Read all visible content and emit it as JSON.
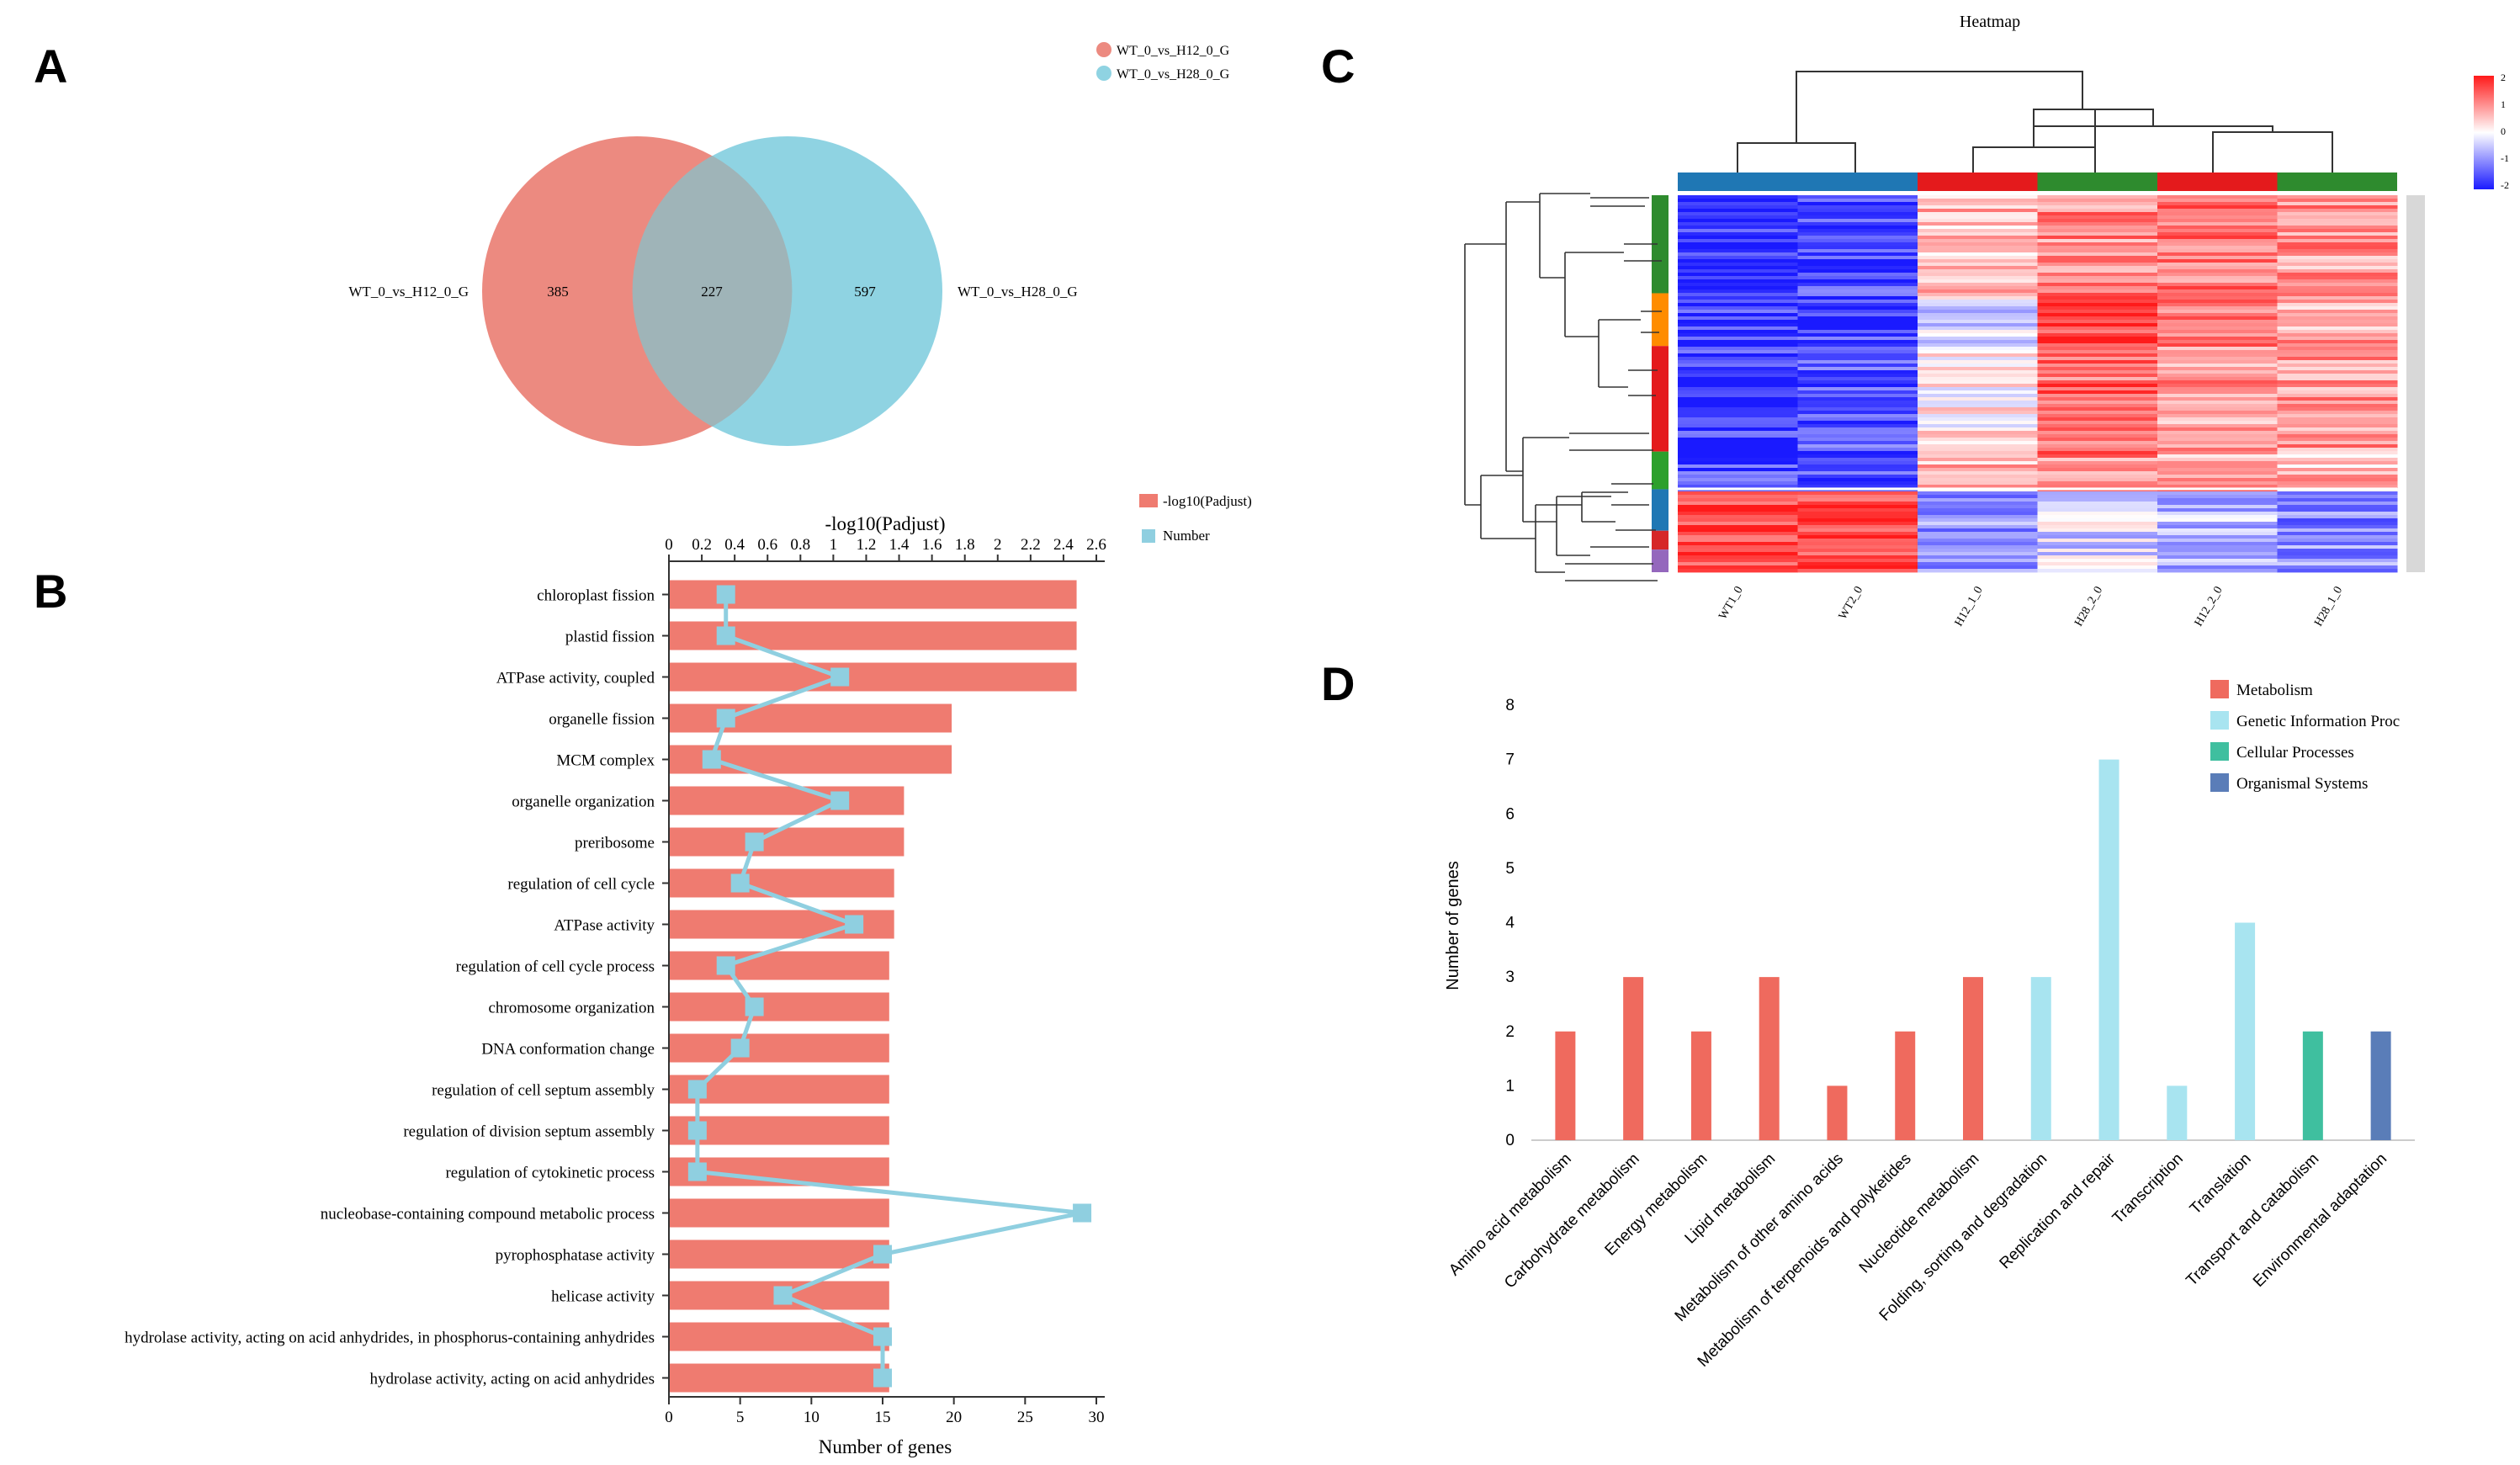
{
  "panels": {
    "a": "A",
    "b": "B",
    "c": "C",
    "d": "D"
  },
  "chart_data": [
    {
      "type": "venn",
      "panel": "A",
      "sets": [
        {
          "name": "WT_0_vs_H12_0_G",
          "only": 385,
          "color": "#ec8a80"
        },
        {
          "name": "WT_0_vs_H28_0_G",
          "only": 597,
          "color": "#8fd3e2"
        }
      ],
      "intersection": 227,
      "overlap_color": "#9fb4b8",
      "legend": [
        "WT_0_vs_H12_0_G",
        "WT_0_vs_H28_0_G"
      ]
    },
    {
      "type": "bar",
      "panel": "B",
      "orientation": "horizontal",
      "top_axis_label": "-log10(Padjust)",
      "bottom_axis_label": "Number of genes",
      "top_ticks": [
        "0",
        "0.2",
        "0.4",
        "0.6",
        "0.8",
        "1",
        "1.2",
        "1.4",
        "1.6",
        "1.8",
        "2",
        "2.2",
        "2.4",
        "2.6"
      ],
      "top_lim": [
        0,
        2.6
      ],
      "bottom_ticks": [
        "0",
        "5",
        "10",
        "15",
        "20",
        "25",
        "30"
      ],
      "bottom_lim": [
        0,
        30
      ],
      "bar_color": "#ef7b70",
      "line_color": "#8fcfe0",
      "legend": [
        "-log10(Padjust)",
        "Number"
      ],
      "categories": [
        "chloroplast fission",
        "plastid fission",
        "ATPase activity, coupled",
        "organelle fission",
        "MCM complex",
        "organelle organization",
        "preribosome",
        "regulation of cell cycle",
        "ATPase activity",
        "regulation of cell cycle process",
        "chromosome organization",
        "DNA conformation change",
        "regulation of cell septum assembly",
        "regulation of division septum assembly",
        "regulation of cytokinetic process",
        "nucleobase-containing compound metabolic process",
        "pyrophosphatase activity",
        "helicase activity",
        "hydrolase activity, acting on acid anhydrides, in phosphorus-containing anhydrides",
        "hydrolase activity, acting on acid anhydrides"
      ],
      "series": [
        {
          "name": "-log10(Padjust)",
          "values": [
            2.48,
            2.48,
            2.48,
            1.72,
            1.72,
            1.43,
            1.43,
            1.37,
            1.37,
            1.34,
            1.34,
            1.34,
            1.34,
            1.34,
            1.34,
            1.34,
            1.34,
            1.34,
            1.34,
            1.34
          ]
        },
        {
          "name": "Number",
          "values": [
            4,
            4,
            12,
            4,
            3,
            12,
            6,
            5,
            13,
            4,
            6,
            5,
            2,
            2,
            2,
            29,
            15,
            8,
            15,
            15
          ]
        }
      ]
    },
    {
      "type": "heatmap",
      "panel": "C",
      "title": "Heatmap",
      "columns": [
        "WT1_0",
        "WT2_0",
        "H12_1_0",
        "H28_2_0",
        "H12_2_0",
        "H28_1_0"
      ],
      "column_group_colors": [
        "#1f77b4",
        "#1f77b4",
        "#e41a1c",
        "#2e8b2e",
        "#e41a1c",
        "#2e8b2e"
      ],
      "row_cluster_colors": [
        "#2e8b2e",
        "#ff8c00",
        "#e41a1c",
        "#2ca02c",
        "#1f77b4",
        "#d62728",
        "#9467bd"
      ],
      "color_scale": {
        "min": -2,
        "max": 2,
        "low": "#1a1aff",
        "mid": "#ffffff",
        "high": "#ff1a1a"
      },
      "scale_ticks": [
        "2",
        "1",
        "0",
        "-1",
        "-2"
      ]
    },
    {
      "type": "bar",
      "panel": "D",
      "ylabel": "Number of genes",
      "ylim": [
        0,
        8
      ],
      "yticks": [
        "0",
        "1",
        "2",
        "3",
        "4",
        "5",
        "6",
        "7",
        "8"
      ],
      "categories": [
        "Amino acid metabolism",
        "Carbohydrate metabolism",
        "Energy metabolism",
        "Lipid metabolism",
        "Metabolism of other amino acids",
        "Metabolism of terpenoids and polyketides",
        "Nucleotide metabolism",
        "Folding, sorting and degradation",
        "Replication and repair",
        "Transcription",
        "Translation",
        "Transport and catabolism",
        "Environmental adaptation"
      ],
      "values": [
        2,
        3,
        2,
        3,
        1,
        2,
        3,
        3,
        7,
        1,
        4,
        2,
        2
      ],
      "groups": [
        "Metabolism",
        "Metabolism",
        "Metabolism",
        "Metabolism",
        "Metabolism",
        "Metabolism",
        "Metabolism",
        "Genetic Information Proc",
        "Genetic Information Proc",
        "Genetic Information Proc",
        "Genetic Information Proc",
        "Cellular Processes",
        "Organismal Systems"
      ],
      "legend": [
        {
          "name": "Metabolism",
          "color": "#ef6a5e"
        },
        {
          "name": "Genetic Information Proc",
          "color": "#a8e4f0"
        },
        {
          "name": "Cellular Processes",
          "color": "#3fbf9f"
        },
        {
          "name": "Organismal Systems",
          "color": "#5a7db8"
        }
      ]
    }
  ]
}
